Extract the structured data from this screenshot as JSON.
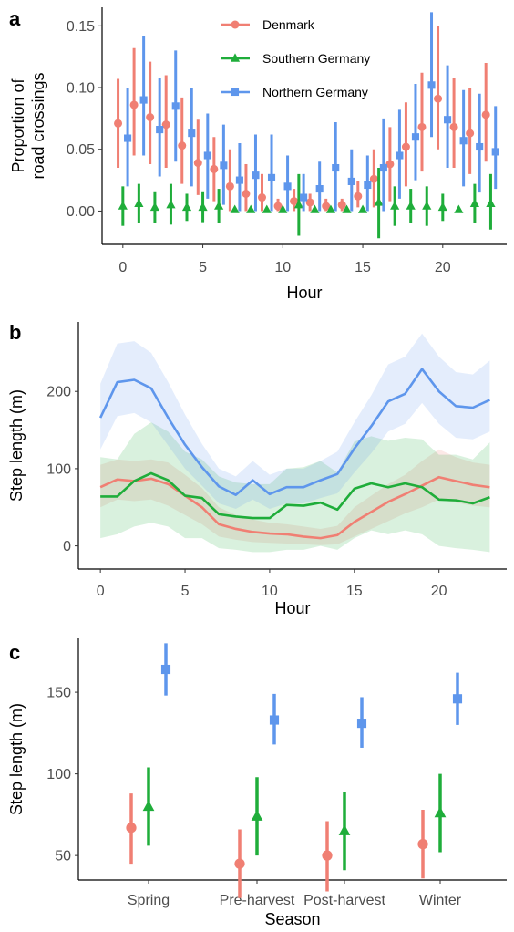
{
  "colors": {
    "Denmark": "#F07F73",
    "Southern Germany": "#1FAD3A",
    "Northern Germany": "#5E96EC"
  },
  "legend": [
    "Denmark",
    "Southern Germany",
    "Northern Germany"
  ],
  "chart_data": [
    {
      "panel": "a",
      "type": "scatter",
      "xlabel": "Hour",
      "ylabel": [
        "Proportion of",
        "road crossings"
      ],
      "xlim": [
        -1.3,
        24
      ],
      "ylim": [
        -0.027,
        0.165
      ],
      "xticks": [
        0,
        5,
        10,
        15,
        20
      ],
      "yticks": [
        0.0,
        0.05,
        0.1,
        0.15
      ],
      "ytick_labels": [
        "0.00",
        "0.05",
        "0.10",
        "0.15"
      ],
      "legend_position": "top",
      "series": [
        {
          "name": "Denmark",
          "marker": "circle",
          "x_offset": -0.3,
          "x": [
            0,
            1,
            2,
            3,
            4,
            5,
            6,
            7,
            8,
            9,
            10,
            11,
            12,
            13,
            14,
            15,
            16,
            17,
            18,
            19,
            20,
            21,
            22,
            23
          ],
          "y": [
            0.071,
            0.086,
            0.076,
            0.07,
            0.053,
            0.039,
            0.034,
            0.02,
            0.014,
            0.011,
            0.004,
            0.008,
            0.007,
            0.004,
            0.005,
            0.012,
            0.026,
            0.038,
            0.052,
            0.068,
            0.091,
            0.068,
            0.063,
            0.078
          ],
          "low": [
            0.035,
            0.045,
            0.038,
            0.035,
            0.022,
            0.013,
            0.008,
            0.0,
            0.0,
            0.0,
            0.0,
            0.0,
            0.0,
            0.0,
            0.0,
            0.003,
            0.003,
            0.008,
            0.02,
            0.032,
            0.05,
            0.035,
            0.03,
            0.04
          ],
          "high": [
            0.107,
            0.132,
            0.121,
            0.11,
            0.092,
            0.074,
            0.06,
            0.05,
            0.038,
            0.03,
            0.01,
            0.018,
            0.014,
            0.01,
            0.01,
            0.024,
            0.05,
            0.068,
            0.088,
            0.112,
            0.15,
            0.108,
            0.1,
            0.12
          ]
        },
        {
          "name": "Southern Germany",
          "marker": "triangle",
          "x_offset": 0,
          "x": [
            0,
            1,
            2,
            3,
            4,
            5,
            6,
            7,
            8,
            9,
            10,
            11,
            12,
            13,
            14,
            15,
            16,
            17,
            18,
            19,
            20,
            21,
            22,
            23
          ],
          "y": [
            0.004,
            0.006,
            0.003,
            0.005,
            0.003,
            0.003,
            0.004,
            0.001,
            0.001,
            0.001,
            0.001,
            0.005,
            0.001,
            0.001,
            0.001,
            0.001,
            0.007,
            0.004,
            0.004,
            0.004,
            0.003,
            0.001,
            0.006,
            0.006
          ],
          "low": [
            -0.012,
            -0.01,
            -0.01,
            -0.011,
            -0.008,
            -0.009,
            -0.01,
            0.001,
            0.001,
            0.001,
            0.001,
            -0.02,
            0.001,
            0.001,
            0.001,
            0.001,
            -0.022,
            -0.012,
            -0.01,
            -0.012,
            -0.008,
            0.001,
            -0.01,
            -0.015
          ],
          "high": [
            0.02,
            0.022,
            0.016,
            0.022,
            0.014,
            0.016,
            0.018,
            0.001,
            0.001,
            0.001,
            0.001,
            0.03,
            0.001,
            0.001,
            0.001,
            0.001,
            0.035,
            0.02,
            0.018,
            0.02,
            0.014,
            0.001,
            0.022,
            0.03
          ]
        },
        {
          "name": "Northern Germany",
          "marker": "square",
          "x_offset": 0.3,
          "x": [
            0,
            1,
            2,
            3,
            4,
            5,
            6,
            7,
            8,
            9,
            10,
            11,
            12,
            13,
            14,
            15,
            16,
            17,
            18,
            19,
            20,
            21,
            22,
            23
          ],
          "y": [
            0.059,
            0.09,
            0.066,
            0.085,
            0.063,
            0.045,
            0.037,
            0.025,
            0.029,
            0.027,
            0.02,
            0.011,
            0.018,
            0.035,
            0.024,
            0.021,
            0.035,
            0.045,
            0.06,
            0.102,
            0.074,
            0.057,
            0.052,
            0.048
          ],
          "low": [
            0.02,
            0.045,
            0.028,
            0.04,
            0.02,
            0.01,
            0.005,
            0.0,
            0.0,
            0.0,
            0.0,
            0.0,
            0.0,
            0.0,
            0.0,
            0.0,
            0.0,
            0.01,
            0.025,
            0.06,
            0.035,
            0.02,
            0.015,
            0.018
          ],
          "high": [
            0.1,
            0.142,
            0.108,
            0.13,
            0.1,
            0.079,
            0.07,
            0.055,
            0.062,
            0.062,
            0.045,
            0.03,
            0.04,
            0.072,
            0.05,
            0.045,
            0.075,
            0.082,
            0.103,
            0.161,
            0.118,
            0.098,
            0.095,
            0.085
          ]
        }
      ]
    },
    {
      "panel": "b",
      "type": "line",
      "xlabel": "Hour",
      "ylabel": "Step length (m)",
      "xlim": [
        -1.3,
        24
      ],
      "ylim": [
        -30,
        290
      ],
      "xticks": [
        0,
        5,
        10,
        15,
        20
      ],
      "yticks": [
        0,
        100,
        200
      ],
      "ytick_labels": [
        "0",
        "100",
        "200"
      ],
      "series": [
        {
          "name": "Denmark",
          "x": [
            0,
            1,
            2,
            3,
            4,
            5,
            6,
            7,
            8,
            9,
            10,
            11,
            12,
            13,
            14,
            15,
            16,
            17,
            18,
            19,
            20,
            21,
            22,
            23
          ],
          "y": [
            76,
            86,
            84,
            87,
            80,
            65,
            50,
            28,
            22,
            18,
            16,
            15,
            12,
            10,
            14,
            31,
            44,
            57,
            67,
            78,
            89,
            84,
            79,
            76
          ],
          "low": [
            50,
            60,
            58,
            60,
            52,
            40,
            28,
            12,
            8,
            5,
            4,
            3,
            2,
            1,
            2,
            12,
            22,
            32,
            42,
            50,
            60,
            56,
            52,
            50
          ],
          "high": [
            105,
            112,
            110,
            112,
            108,
            92,
            75,
            50,
            40,
            34,
            30,
            28,
            25,
            22,
            26,
            50,
            65,
            80,
            92,
            110,
            125,
            115,
            108,
            105
          ]
        },
        {
          "name": "Southern Germany",
          "x": [
            0,
            1,
            2,
            3,
            4,
            5,
            6,
            7,
            8,
            9,
            10,
            11,
            12,
            13,
            14,
            15,
            16,
            17,
            18,
            19,
            20,
            21,
            22,
            23
          ],
          "y": [
            64,
            64,
            84,
            94,
            85,
            65,
            62,
            41,
            38,
            36,
            36,
            53,
            52,
            56,
            47,
            74,
            81,
            76,
            81,
            76,
            60,
            59,
            55,
            63
          ],
          "low": [
            10,
            15,
            25,
            30,
            25,
            10,
            10,
            -3,
            -5,
            -8,
            -8,
            -5,
            -5,
            0,
            -5,
            10,
            20,
            15,
            20,
            15,
            0,
            -3,
            -5,
            -8
          ],
          "high": [
            115,
            112,
            145,
            160,
            148,
            122,
            112,
            90,
            82,
            80,
            80,
            100,
            102,
            110,
            95,
            135,
            142,
            136,
            140,
            138,
            118,
            118,
            112,
            134
          ]
        },
        {
          "name": "Northern Germany",
          "x": [
            0,
            1,
            2,
            3,
            4,
            5,
            6,
            7,
            8,
            9,
            10,
            11,
            12,
            13,
            14,
            15,
            16,
            17,
            18,
            19,
            20,
            21,
            22,
            23
          ],
          "y": [
            166,
            212,
            215,
            204,
            166,
            131,
            102,
            77,
            66,
            85,
            67,
            76,
            76,
            85,
            93,
            126,
            155,
            187,
            197,
            229,
            200,
            181,
            179,
            189
          ],
          "low": [
            125,
            168,
            172,
            160,
            130,
            100,
            78,
            55,
            48,
            60,
            48,
            55,
            55,
            62,
            68,
            95,
            120,
            148,
            158,
            185,
            158,
            140,
            138,
            148
          ],
          "high": [
            210,
            262,
            265,
            250,
            212,
            170,
            132,
            100,
            90,
            110,
            92,
            100,
            100,
            110,
            122,
            160,
            195,
            235,
            245,
            275,
            245,
            225,
            222,
            240
          ]
        }
      ]
    },
    {
      "panel": "c",
      "type": "scatter",
      "xlabel": "Season",
      "ylabel": "Step length (m)",
      "categories": [
        "Spring",
        "Pre-harvest",
        "Post-harvest",
        "Winter"
      ],
      "ylim": [
        35,
        183
      ],
      "yticks": [
        50,
        100,
        150
      ],
      "ytick_labels": [
        "50",
        "100",
        "150"
      ],
      "series": [
        {
          "name": "Denmark",
          "marker": "circle",
          "x_offset": -0.2,
          "y": [
            67,
            45,
            50,
            57
          ],
          "low": [
            45,
            24,
            28,
            36
          ],
          "high": [
            88,
            66,
            71,
            78
          ]
        },
        {
          "name": "Southern Germany",
          "marker": "triangle",
          "x_offset": 0,
          "y": [
            80,
            74,
            65,
            76
          ],
          "low": [
            56,
            50,
            41,
            52
          ],
          "high": [
            104,
            98,
            89,
            100
          ]
        },
        {
          "name": "Northern Germany",
          "marker": "square",
          "x_offset": 0.2,
          "y": [
            164,
            133,
            131,
            146
          ],
          "low": [
            148,
            118,
            116,
            130
          ],
          "high": [
            180,
            149,
            147,
            162
          ]
        }
      ]
    }
  ]
}
